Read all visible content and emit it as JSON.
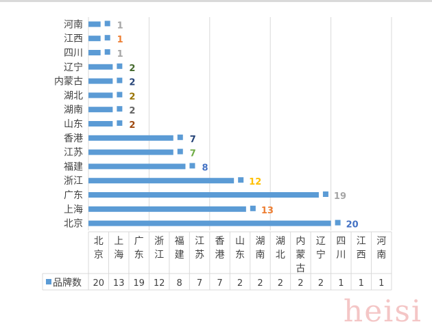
{
  "chart_data": {
    "type": "bar",
    "orientation": "horizontal",
    "categories": [
      "北京",
      "上海",
      "广东",
      "浙江",
      "福建",
      "江苏",
      "香港",
      "山东",
      "湖南",
      "湖北",
      "内蒙古",
      "辽宁",
      "四川",
      "江西",
      "河南"
    ],
    "series": [
      {
        "name": "品牌数",
        "values": [
          20,
          13,
          19,
          12,
          8,
          7,
          7,
          2,
          2,
          2,
          2,
          2,
          1,
          1,
          1
        ],
        "color": "#5b9bd5"
      }
    ],
    "label_colors": [
      "#4472c4",
      "#ed7d31",
      "#a5a5a5",
      "#ffc000",
      "#4472c4",
      "#70ad47",
      "#264478",
      "#9e480e",
      "#636363",
      "#997300",
      "#264478",
      "#43682b",
      "#a5a5a5",
      "#ed7d31",
      "#a5a5a5"
    ],
    "xlim": [
      0,
      25
    ],
    "grid": true,
    "data_table": true,
    "legend": "data-table-left"
  },
  "watermark": "heisi"
}
